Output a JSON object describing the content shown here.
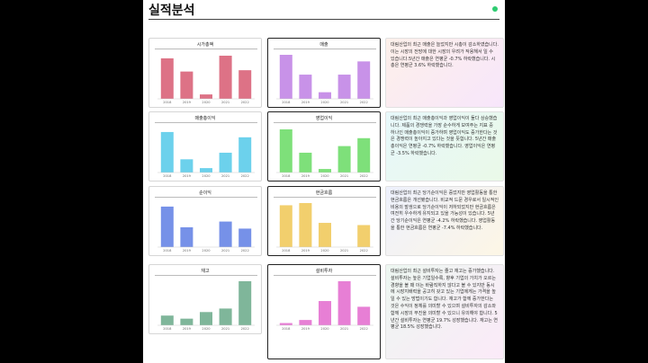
{
  "page": {
    "title": "실적분석",
    "status_color": "#2ecc71"
  },
  "years": [
    "2018",
    "2019",
    "2020",
    "2021",
    "2022"
  ],
  "chart_data": [
    {
      "type": "bar",
      "title": "시가총액",
      "categories": [
        "2018",
        "2019",
        "2020",
        "2021",
        "2022"
      ],
      "values": [
        0.92,
        0.62,
        0.1,
        0.98,
        0.65
      ],
      "color": "#dd7286",
      "ylim": [
        0,
        1
      ]
    },
    {
      "type": "bar",
      "title": "매출",
      "categories": [
        "2018",
        "2019",
        "2020",
        "2021",
        "2022"
      ],
      "values": [
        1.0,
        0.55,
        0.15,
        0.55,
        0.85
      ],
      "color": "#c892e8",
      "ylim": [
        0,
        1
      ]
    },
    {
      "type": "bar",
      "title": "매출총이익",
      "categories": [
        "2018",
        "2019",
        "2020",
        "2021",
        "2022"
      ],
      "values": [
        0.92,
        0.3,
        0.1,
        0.45,
        0.8
      ],
      "color": "#6cd1ec",
      "ylim": [
        0,
        1
      ]
    },
    {
      "type": "bar",
      "title": "영업이익",
      "categories": [
        "2018",
        "2019",
        "2020",
        "2021",
        "2022"
      ],
      "values": [
        0.98,
        0.45,
        0.08,
        0.6,
        0.78
      ],
      "color": "#7ee07a",
      "ylim": [
        0,
        1
      ]
    },
    {
      "type": "bar",
      "title": "순이익",
      "categories": [
        "2018",
        "2019",
        "2020",
        "2021",
        "2022"
      ],
      "values": [
        0.92,
        0.45,
        0.0,
        0.58,
        0.42
      ],
      "color": "#7691e8",
      "ylim": [
        0,
        1
      ]
    },
    {
      "type": "bar",
      "title": "현금흐름",
      "categories": [
        "2018",
        "2019",
        "2020",
        "2021",
        "2022"
      ],
      "values": [
        0.95,
        1.0,
        0.55,
        0.0,
        0.5
      ],
      "color": "#f2cf6d",
      "ylim": [
        0,
        1
      ]
    },
    {
      "type": "bar",
      "title": "재고",
      "categories": [
        "2018",
        "2019",
        "2020",
        "2021",
        "2022"
      ],
      "values": [
        0.22,
        0.15,
        0.3,
        0.38,
        1.0
      ],
      "color": "#7fb69a",
      "ylim": [
        0,
        1
      ]
    },
    {
      "type": "bar",
      "title": "설비투자",
      "categories": [
        "2018",
        "2019",
        "2020",
        "2021",
        "2022"
      ],
      "values": [
        0.05,
        0.12,
        0.55,
        1.0,
        0.42
      ],
      "color": "#e77fd5",
      "ylim": [
        0,
        1
      ]
    }
  ],
  "descriptions": [
    "대림산업의 최근 매출은 늘었지만 시총이 감소하였습니다. 이는 시장의 전망에 대한 시장의 우려가 작용해서 일 수 있습니다.5년간 매출은 연평균 -0.7% 하락했습니다. 시총은 연평균 3.6% 하락했습니다.",
    "대림산업의 최근 매출총이익과 영업이익이 둘다 상승했습니다. 제품의 경쟁력을 가장 순수하게 보여주는 지표 중 하나인 매출총이익이 증가하며 영업이익도 증가한다는 것은 경쟁력이 높아지고 있다는 것을 뜻합니다. 5년간 매출총이익은 연평균 -0.7% 하락했습니다. 영업이익은 연평균 -3.5% 하락했습니다.",
    "대림산업의 최근 당기순이익은 증었지만 영업활동을 통한 현금흐름은 개선됐습니다. 비교적 드문 경우로서 일시적인 비용의 발생으로 당기순이익이 저하되었지만 현금흐름은 여전히 우수하게 유지되고 있을 가능성이 있습니다. 5년간 당기순이익은 연평균 -4.2% 하락했습니다. 영업활동을 통한 현금흐름은 연평균 -7.4% 하락했습니다.",
    "대림산업의 최근 설비투자는 줄고 재고는 증가했습니다. 설비투자는 높은 기업일수록, 향후 기업의 가치가 오르는 경향을 볼 때 이는 바람직하지 않다고 볼 수 있지만 동시에 시장지배력을 공고히 갖고 있는 기업에게는 가격을 높일 수 있는 방법이기도 합니다. 재고가 함께 증가한다는 것은 수익이 정체를 의미할 수 있으며 설비투자의 감소와 함께 시장의 부진을 의미할 수 있으니 유의해야 합니다. 5년간 설비투자는 연평균 19.7% 성장했습니다. 재고는 연평균 18.5% 성장했습니다."
  ],
  "desc_gradients": [
    [
      "#fdf0ea",
      "#f7e6fb"
    ],
    [
      "#e8f8fb",
      "#eaf9e8"
    ],
    [
      "#eef1fd",
      "#fdf6e5"
    ],
    [
      "#edf7f1",
      "#fbeaf8"
    ]
  ]
}
